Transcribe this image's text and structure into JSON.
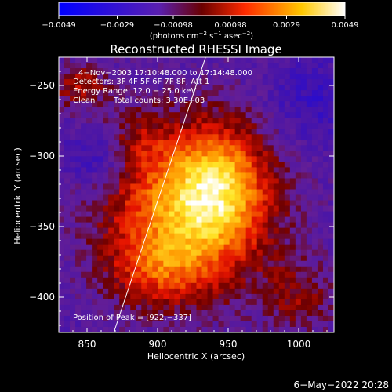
{
  "chart_data": {
    "type": "heatmap",
    "title": "Reconstructed RHESSI Image",
    "xlabel": "Heliocentric X (arcsec)",
    "ylabel": "Heliocentric Y (arcsec)",
    "xlim": [
      830,
      1025
    ],
    "ylim": [
      -425,
      -230
    ],
    "x_ticks": [
      850,
      900,
      950,
      1000
    ],
    "y_ticks": [
      -250,
      -300,
      -350,
      -400
    ],
    "x_tick_labels": [
      "850",
      "900",
      "950",
      "1000"
    ],
    "y_tick_labels": [
      "−250",
      "−300",
      "−350",
      "−400"
    ],
    "colorbar": {
      "min": -0.0049,
      "max": 0.0049,
      "ticks": [
        -0.0049,
        -0.0029,
        -0.00098,
        0.00098,
        0.0029,
        0.0049
      ],
      "tick_labels": [
        "−0.0049",
        "−0.0029",
        "−0.00098",
        "0.00098",
        "0.0029",
        "0.0049"
      ],
      "units_text": "(photons cm",
      "units_exp1": "−2",
      "units_mid": " s",
      "units_exp2": "−1",
      "units_mid2": " asec",
      "units_exp3": "−2",
      "units_end": ")"
    },
    "annotations": {
      "time_range": "4−Nov−2003 17:10:48.000 to 17:14:48.000",
      "detectors": "Detectors: 3F 4F 5F 6F 7F 8F, Att 1",
      "energy_range": "Energy Range: 12.0 − 25.0 keV",
      "clean_label": "Clean",
      "total_counts": "Total counts: 3.30E+03",
      "peak_position": "Position of Peak = [922,−337]"
    },
    "peak": [
      922,
      -337
    ],
    "limb_line": [
      [
        869,
        -425
      ],
      [
        934,
        -230
      ]
    ]
  },
  "footer": {
    "date": "6−May−2022 20:28"
  }
}
